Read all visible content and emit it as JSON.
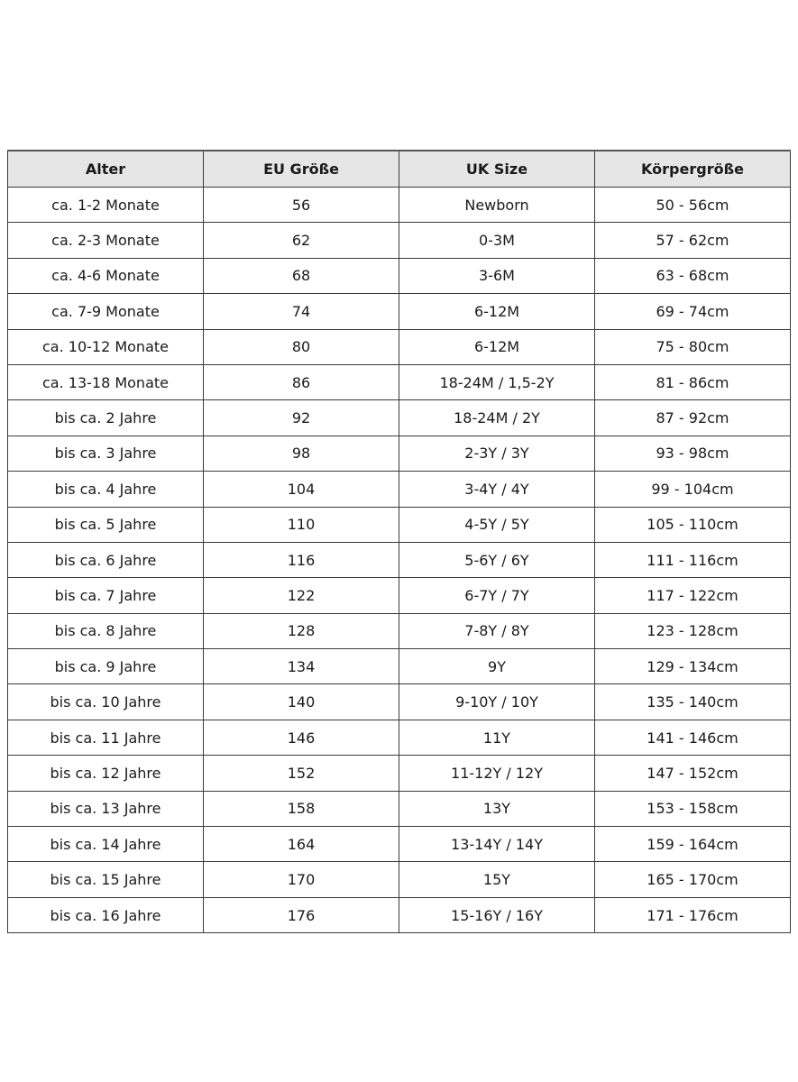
{
  "table": {
    "headers": [
      "Alter",
      "EU Größe",
      "UK Size",
      "Körpergröße"
    ],
    "rows": [
      [
        "ca. 1-2 Monate",
        "56",
        "Newborn",
        "50 - 56cm"
      ],
      [
        "ca. 2-3 Monate",
        "62",
        "0-3M",
        "57 - 62cm"
      ],
      [
        "ca. 4-6 Monate",
        "68",
        "3-6M",
        "63 - 68cm"
      ],
      [
        "ca. 7-9 Monate",
        "74",
        "6-12M",
        "69 - 74cm"
      ],
      [
        "ca. 10-12 Monate",
        "80",
        "6-12M",
        "75 - 80cm"
      ],
      [
        "ca. 13-18 Monate",
        "86",
        "18-24M / 1,5-2Y",
        "81 - 86cm"
      ],
      [
        "bis ca. 2 Jahre",
        "92",
        "18-24M / 2Y",
        "87 - 92cm"
      ],
      [
        "bis ca. 3 Jahre",
        "98",
        "2-3Y / 3Y",
        "93 - 98cm"
      ],
      [
        "bis ca. 4 Jahre",
        "104",
        "3-4Y / 4Y",
        "99 - 104cm"
      ],
      [
        "bis ca. 5 Jahre",
        "110",
        "4-5Y / 5Y",
        "105 - 110cm"
      ],
      [
        "bis ca. 6 Jahre",
        "116",
        "5-6Y / 6Y",
        "111 - 116cm"
      ],
      [
        "bis ca. 7 Jahre",
        "122",
        "6-7Y / 7Y",
        "117 - 122cm"
      ],
      [
        "bis ca. 8 Jahre",
        "128",
        "7-8Y / 8Y",
        "123 - 128cm"
      ],
      [
        "bis ca. 9 Jahre",
        "134",
        "9Y",
        "129 - 134cm"
      ],
      [
        "bis ca. 10 Jahre",
        "140",
        "9-10Y / 10Y",
        "135 - 140cm"
      ],
      [
        "bis ca. 11 Jahre",
        "146",
        "11Y",
        "141 - 146cm"
      ],
      [
        "bis ca. 12 Jahre",
        "152",
        "11-12Y / 12Y",
        "147 - 152cm"
      ],
      [
        "bis ca. 13 Jahre",
        "158",
        "13Y",
        "153 - 158cm"
      ],
      [
        "bis ca. 14 Jahre",
        "164",
        "13-14Y / 14Y",
        "159 - 164cm"
      ],
      [
        "bis ca. 15 Jahre",
        "170",
        "15Y",
        "165 - 170cm"
      ],
      [
        "bis ca. 16 Jahre",
        "176",
        "15-16Y / 16Y",
        "171 - 176cm"
      ]
    ]
  },
  "colors": {
    "header_bg": "#e6e6e6",
    "border": "#3a3a3a"
  }
}
